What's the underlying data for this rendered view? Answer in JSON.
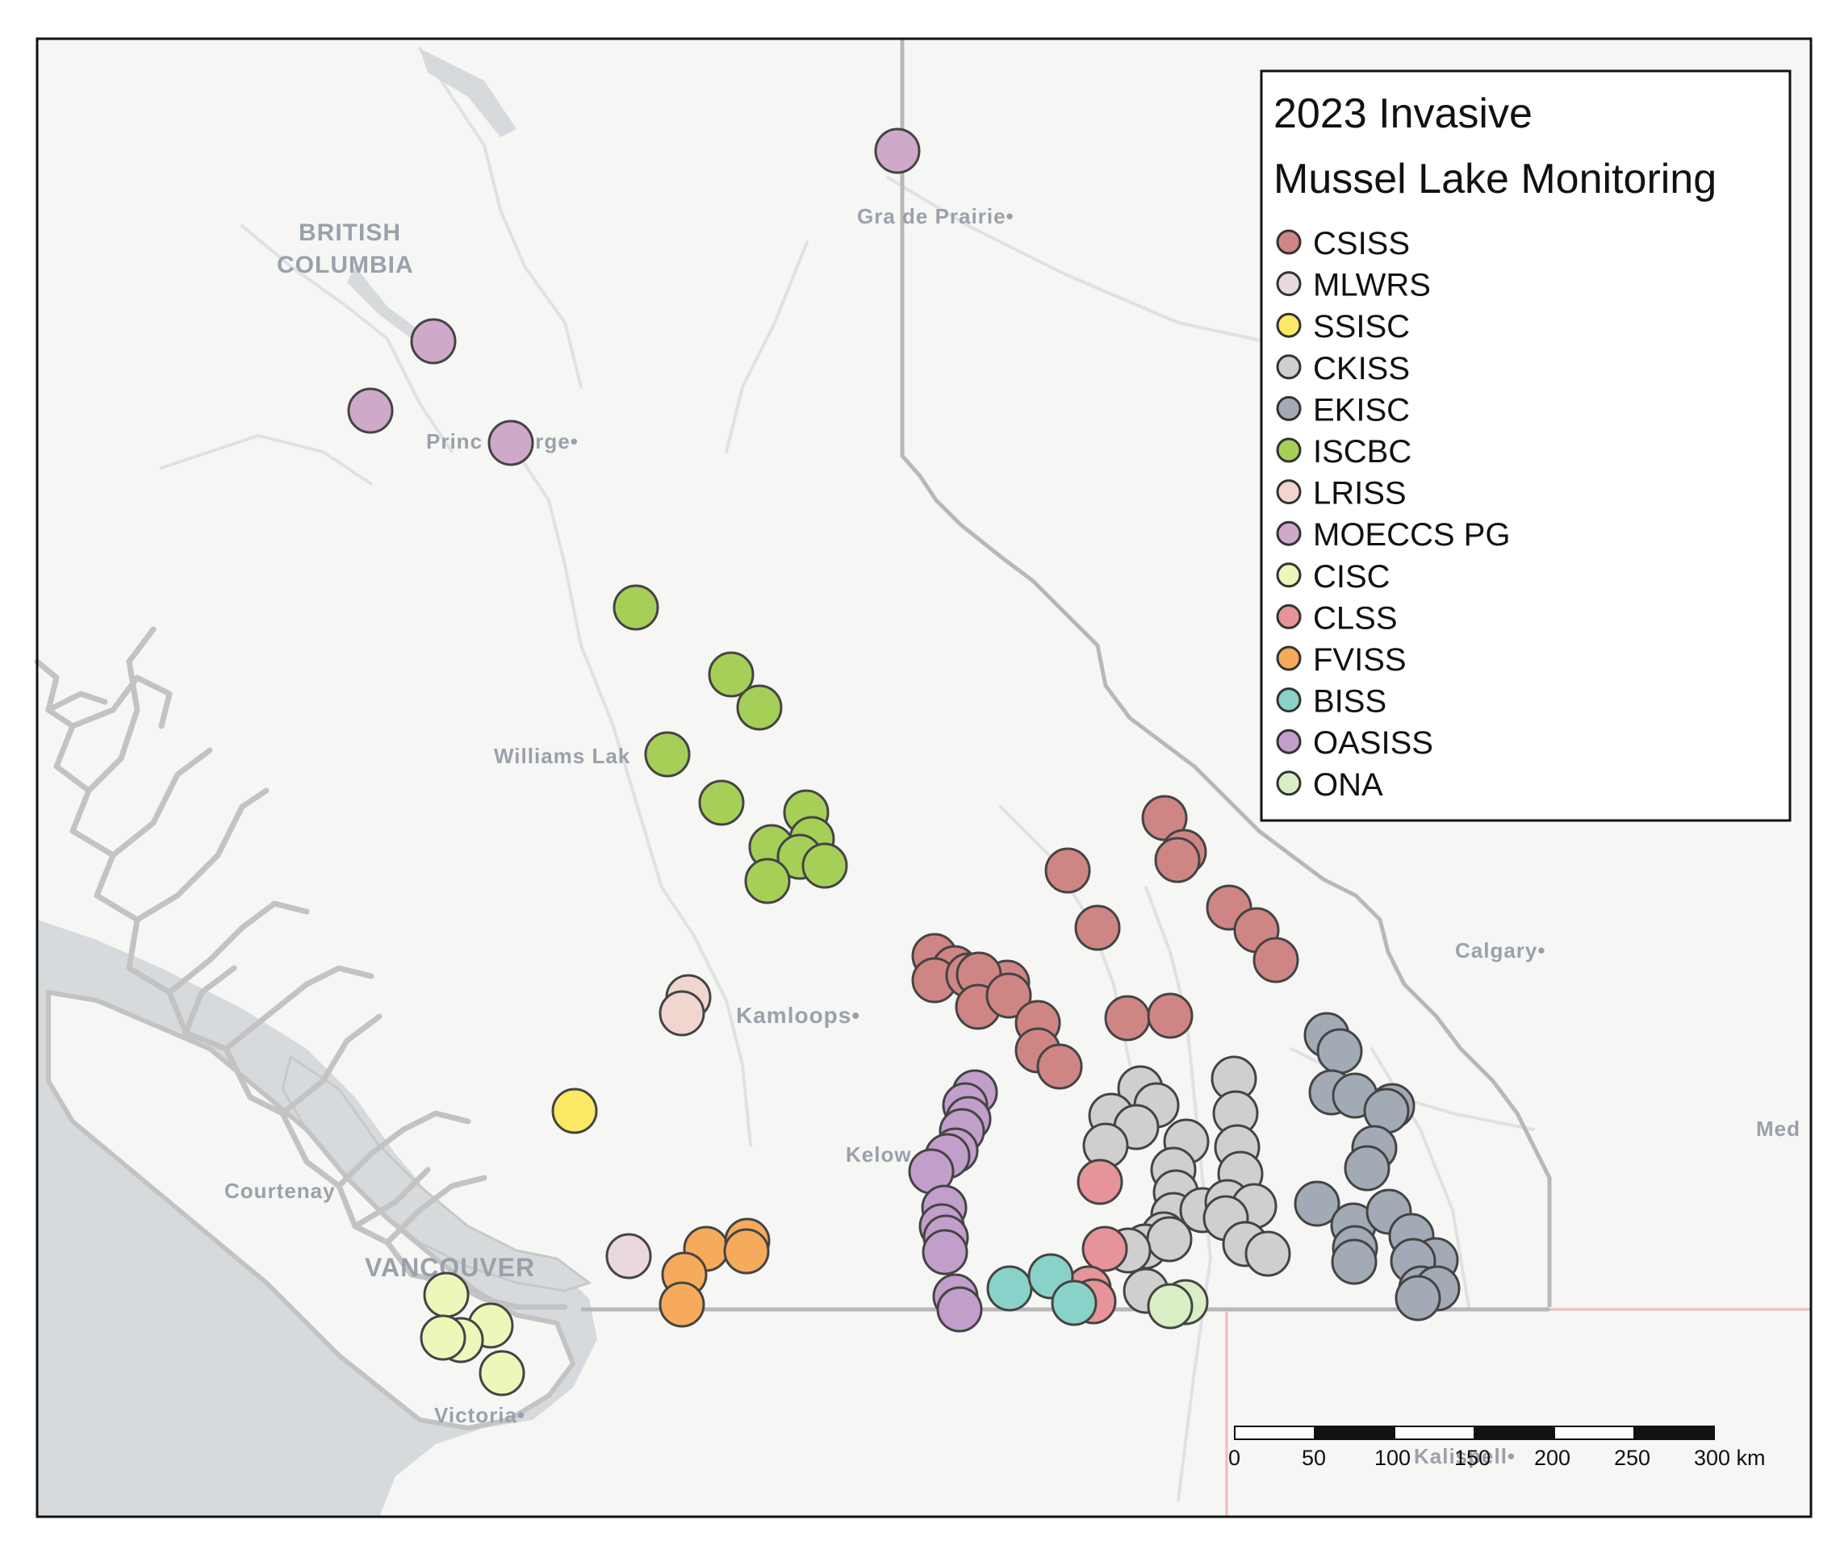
{
  "map": {
    "legend": {
      "title_line1": "2023 Invasive",
      "title_line2": "Mussel Lake Monitoring",
      "items": [
        {
          "id": "csiss",
          "label": "CSISS",
          "color": "#d08585"
        },
        {
          "id": "mlwrs",
          "label": "MLWRS",
          "color": "#e9d9de"
        },
        {
          "id": "ssisc",
          "label": "SSISC",
          "color": "#fbe865"
        },
        {
          "id": "ckiss",
          "label": "CKISS",
          "color": "#cfcfcf"
        },
        {
          "id": "ekisc",
          "label": "EKISC",
          "color": "#a2abb5"
        },
        {
          "id": "iscbc",
          "label": "ISCBC",
          "color": "#a6cf58"
        },
        {
          "id": "lriss",
          "label": "LRISS",
          "color": "#f0d6cf"
        },
        {
          "id": "moeccs_pg",
          "label": "MOECCS PG",
          "color": "#cfa9c9"
        },
        {
          "id": "cisc",
          "label": "CISC",
          "color": "#eff6b9"
        },
        {
          "id": "clss",
          "label": "CLSS",
          "color": "#e7939a"
        },
        {
          "id": "fviss",
          "label": "FVISS",
          "color": "#f6ab5c"
        },
        {
          "id": "biss",
          "label": "BISS",
          "color": "#89d2c9"
        },
        {
          "id": "oasiss",
          "label": "OASISS",
          "color": "#c29fca"
        },
        {
          "id": "ona",
          "label": "ONA",
          "color": "#d9eec4"
        }
      ]
    },
    "place_labels": {
      "bc_line1": "BRITISH",
      "bc_line2": "COLUMBIA",
      "grande_prairie": "Gra de Prairie•",
      "prince_george": "Princ    eorge•",
      "williams_lake": "Williams Lak",
      "kamloops": "Kamloops•",
      "kelowna": "Kelow",
      "calgary": "Calgary•",
      "courtenay": "Courtenay",
      "vancouver": "VANCOUVER",
      "victoria": "Victoria•",
      "kalispell": "Kalispell•",
      "med": "Med"
    },
    "scale_bar": {
      "ticks": [
        "0",
        "50",
        "100",
        "150",
        "200",
        "250",
        "300 km"
      ]
    },
    "colors": {
      "land": "#f6f6f4",
      "water": "#d7dadd",
      "outline": "#c3c3c3",
      "border": "#b8b8b8",
      "us_border": "#f0b8b8",
      "marker_stroke": "#444444"
    }
  }
}
